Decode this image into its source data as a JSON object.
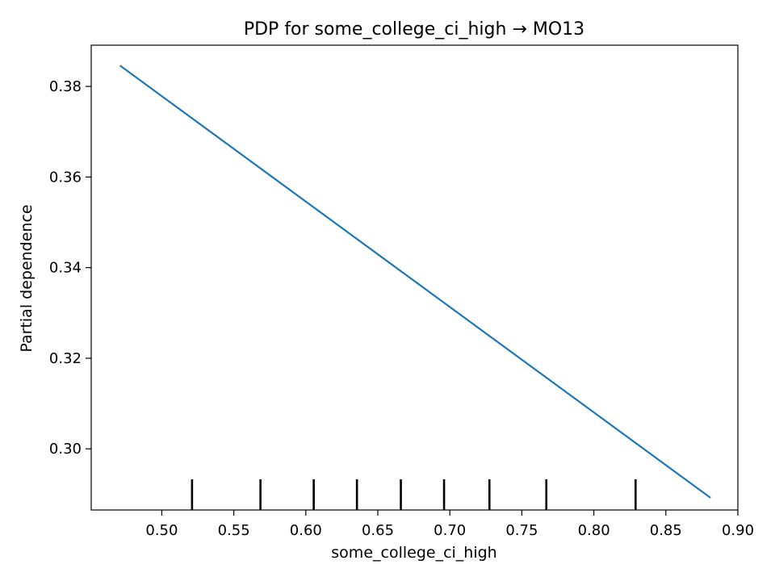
{
  "chart_data": {
    "type": "line",
    "title": "PDP for some_college_ci_high → MO13",
    "xlabel": "some_college_ci_high",
    "ylabel": "Partial dependence",
    "xlim": [
      0.451,
      0.9
    ],
    "ylim": [
      0.2865,
      0.3891
    ],
    "xticks": [
      0.5,
      0.55,
      0.6,
      0.65,
      0.7,
      0.75,
      0.8,
      0.85,
      0.9
    ],
    "xtick_labels": [
      "0.50",
      "0.55",
      "0.60",
      "0.65",
      "0.70",
      "0.75",
      "0.80",
      "0.85",
      "0.90"
    ],
    "yticks": [
      0.3,
      0.32,
      0.34,
      0.36,
      0.38
    ],
    "ytick_labels": [
      "0.30",
      "0.32",
      "0.34",
      "0.36",
      "0.38"
    ],
    "grid": false,
    "series": [
      {
        "color": "#1f77b4",
        "x": [
          0.471,
          0.881
        ],
        "y": [
          0.3846,
          0.2892
        ]
      }
    ],
    "deciles": [
      0.521,
      0.5685,
      0.6055,
      0.6355,
      0.666,
      0.696,
      0.7275,
      0.767,
      0.829
    ],
    "colors": {
      "line": "#1f77b4",
      "deciles": "#000000",
      "axes": "#000000"
    }
  }
}
